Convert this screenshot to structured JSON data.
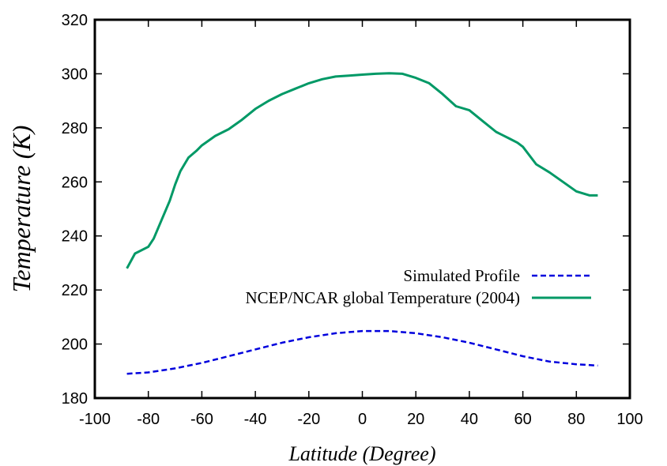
{
  "chart_data": {
    "type": "line",
    "title": "",
    "xlabel": "Latitude (Degree)",
    "ylabel": "Temperature (K)",
    "xlim": [
      -100,
      100
    ],
    "ylim": [
      180,
      320
    ],
    "xticks": [
      -100,
      -80,
      -60,
      -40,
      -20,
      0,
      20,
      40,
      60,
      80,
      100
    ],
    "yticks": [
      180,
      200,
      220,
      240,
      260,
      280,
      300,
      320
    ],
    "xtick_labels": [
      "-100",
      "-80",
      "-60",
      "-40",
      "-20",
      "0",
      "20",
      "40",
      "60",
      "80",
      "100"
    ],
    "ytick_labels": [
      "180",
      "200",
      "220",
      "240",
      "260",
      "280",
      "300",
      "320"
    ],
    "grid": false,
    "legend_position": "center-right",
    "series": [
      {
        "name": "Simulated Profile",
        "color": "#0000dd",
        "style": "dashed",
        "x": [
          -88,
          -80,
          -70,
          -60,
          -50,
          -40,
          -30,
          -20,
          -10,
          0,
          10,
          20,
          30,
          40,
          50,
          60,
          70,
          80,
          88
        ],
        "y": [
          189,
          189.5,
          191,
          193,
          195.5,
          198,
          200.5,
          202.5,
          204,
          204.8,
          204.8,
          204,
          202.5,
          200.5,
          198,
          195.5,
          193.5,
          192.5,
          192
        ]
      },
      {
        "name": "NCEP/NCAR global Temperature (2004)",
        "color": "#009966",
        "style": "solid",
        "x": [
          -88,
          -85,
          -80,
          -78,
          -75,
          -72,
          -70,
          -68,
          -65,
          -62,
          -60,
          -55,
          -50,
          -45,
          -40,
          -35,
          -30,
          -25,
          -20,
          -15,
          -10,
          -5,
          0,
          5,
          10,
          15,
          20,
          25,
          30,
          35,
          40,
          45,
          50,
          55,
          58,
          60,
          65,
          70,
          75,
          80,
          85,
          88
        ],
        "y": [
          228,
          233.5,
          236,
          239,
          246,
          253,
          259,
          264,
          269,
          271.5,
          273.5,
          277,
          279.5,
          283,
          287,
          290,
          292.5,
          294.5,
          296.5,
          298,
          299,
          299.3,
          299.7,
          300,
          300.2,
          300,
          298.5,
          296.5,
          292.5,
          288,
          286.5,
          282.5,
          278.5,
          276,
          274.5,
          273,
          266.5,
          263.5,
          260,
          256.5,
          255,
          255
        ]
      }
    ]
  }
}
